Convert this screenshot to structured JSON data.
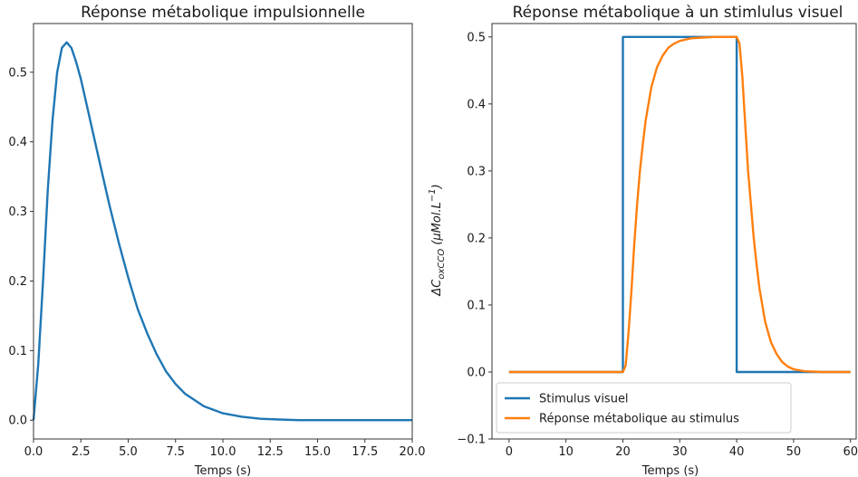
{
  "chart_data": [
    {
      "type": "line",
      "title": "Réponse métabolique impulsionnelle",
      "xlabel": "Temps (s)",
      "ylabel": "",
      "xlim": [
        0,
        20
      ],
      "ylim": [
        -0.027,
        0.57
      ],
      "xticks": [
        "0.0",
        "2.5",
        "5.0",
        "7.5",
        "10.0",
        "12.5",
        "15.0",
        "17.5",
        "20.0"
      ],
      "yticks": [
        "0.0",
        "0.1",
        "0.2",
        "0.3",
        "0.4",
        "0.5"
      ],
      "grid": false,
      "series": [
        {
          "color": "#1f77b4",
          "x": [
            0,
            0.25,
            0.5,
            0.75,
            1.0,
            1.25,
            1.5,
            1.75,
            2.0,
            2.25,
            2.5,
            3.0,
            3.5,
            4.0,
            4.5,
            5.0,
            5.5,
            6.0,
            6.5,
            7.0,
            7.5,
            8.0,
            9.0,
            10.0,
            11.0,
            12.0,
            13.0,
            14.0,
            16.0,
            18.0,
            20.0
          ],
          "y": [
            0.0,
            0.08,
            0.2,
            0.33,
            0.43,
            0.5,
            0.535,
            0.543,
            0.535,
            0.515,
            0.49,
            0.43,
            0.37,
            0.31,
            0.255,
            0.205,
            0.16,
            0.125,
            0.095,
            0.07,
            0.052,
            0.038,
            0.02,
            0.01,
            0.005,
            0.002,
            0.001,
            0.0,
            0.0,
            0.0,
            0.0
          ]
        }
      ]
    },
    {
      "type": "line",
      "title": "Réponse métabolique à un stimlulus visuel",
      "xlabel": "Temps (s)",
      "ylabel": "ΔC",
      "ylabel_sub": "oxCCO",
      "ylabel_unit": " (μMol.L",
      "ylabel_sup": "−1",
      "ylabel_close": ")",
      "xlim": [
        -3,
        61
      ],
      "ylim": [
        -0.1,
        0.52
      ],
      "xticks": [
        "0",
        "10",
        "20",
        "30",
        "40",
        "50",
        "60"
      ],
      "yticks": [
        "−0.1",
        "0.0",
        "0.1",
        "0.2",
        "0.3",
        "0.4",
        "0.5"
      ],
      "grid": false,
      "legend": "lower-left",
      "series": [
        {
          "name": "Stimulus visuel",
          "color": "#1f77b4",
          "x": [
            0,
            20,
            20,
            40,
            40,
            60
          ],
          "y": [
            0,
            0,
            0.5,
            0.5,
            0,
            0
          ]
        },
        {
          "name": "Réponse métabolique au stimulus",
          "color": "#ff7f0e",
          "x": [
            0,
            20,
            20.5,
            21,
            21.5,
            22,
            22.5,
            23,
            23.5,
            24,
            25,
            26,
            27,
            28,
            29,
            30,
            32,
            34,
            36,
            38,
            40,
            40.5,
            41,
            41.5,
            42,
            42.5,
            43,
            43.5,
            44,
            45,
            46,
            47,
            48,
            49,
            50,
            52,
            55,
            60
          ],
          "y": [
            0,
            0,
            0.01,
            0.06,
            0.12,
            0.19,
            0.25,
            0.3,
            0.34,
            0.375,
            0.425,
            0.455,
            0.472,
            0.484,
            0.49,
            0.494,
            0.498,
            0.499,
            0.5,
            0.5,
            0.5,
            0.49,
            0.44,
            0.37,
            0.3,
            0.25,
            0.2,
            0.16,
            0.125,
            0.075,
            0.045,
            0.027,
            0.015,
            0.008,
            0.004,
            0.001,
            0.0,
            0.0
          ]
        }
      ]
    }
  ]
}
